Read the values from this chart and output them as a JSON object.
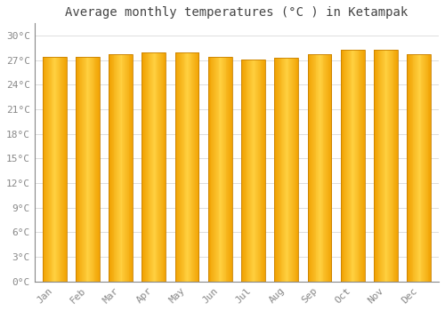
{
  "title": "Average monthly temperatures (°C ) in Ketampak",
  "months": [
    "Jan",
    "Feb",
    "Mar",
    "Apr",
    "May",
    "Jun",
    "Jul",
    "Aug",
    "Sep",
    "Oct",
    "Nov",
    "Dec"
  ],
  "values": [
    27.4,
    27.4,
    27.7,
    28.0,
    27.9,
    27.4,
    27.1,
    27.3,
    27.7,
    28.3,
    28.3,
    27.7
  ],
  "bar_color_center": "#FFD040",
  "bar_color_edge": "#F0A000",
  "bar_edge_color": "#C88000",
  "background_color": "#FFFFFF",
  "grid_color": "#DDDDDD",
  "ytick_values": [
    0,
    3,
    6,
    9,
    12,
    15,
    18,
    21,
    24,
    27,
    30
  ],
  "ylim": [
    0,
    31.5
  ],
  "title_fontsize": 10,
  "tick_fontsize": 8,
  "font_family": "monospace"
}
